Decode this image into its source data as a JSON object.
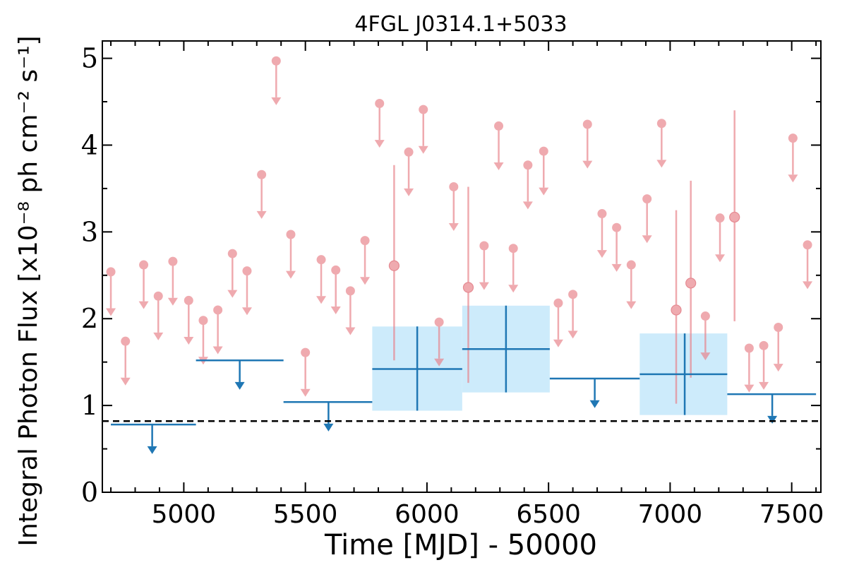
{
  "chart_data": {
    "type": "scatter",
    "title": "4FGL J0314.1+5033",
    "xlabel": "Time [MJD] - 50000",
    "ylabel": "Integral Photon Flux [x10⁻⁸ ph cm⁻² s⁻¹]",
    "xlim": [
      4665,
      7620
    ],
    "ylim": [
      0,
      5.2
    ],
    "xticks": [
      5000,
      5500,
      6000,
      6500,
      7000,
      7500
    ],
    "yticks": [
      0,
      1,
      2,
      3,
      4,
      5
    ],
    "grid": false,
    "reference_line": {
      "y": 0.82,
      "style": "dashed",
      "color": "#000000"
    },
    "colors": {
      "long_bins": "#1f77b4",
      "long_bins_error_box": "#cdebfb",
      "short_bins": "#e8828a"
    },
    "series": [
      {
        "role": "long-bin upper limits",
        "points": [
          {
            "x": 4870,
            "x_lo": 4700,
            "x_hi": 5050,
            "y": 0.78
          },
          {
            "x": 5230,
            "x_lo": 5050,
            "x_hi": 5410,
            "y": 1.52
          },
          {
            "x": 5595,
            "x_lo": 5410,
            "x_hi": 5775,
            "y": 1.04
          },
          {
            "x": 6690,
            "x_lo": 6505,
            "x_hi": 6875,
            "y": 1.31
          },
          {
            "x": 7420,
            "x_lo": 7235,
            "x_hi": 7600,
            "y": 1.13
          }
        ]
      },
      {
        "role": "long-bin detections",
        "points": [
          {
            "x": 5960,
            "x_lo": 5775,
            "x_hi": 6145,
            "y": 1.42,
            "y_lo": 0.94,
            "y_hi": 1.91
          },
          {
            "x": 6325,
            "x_lo": 6145,
            "x_hi": 6505,
            "y": 1.65,
            "y_lo": 1.15,
            "y_hi": 2.15
          },
          {
            "x": 7060,
            "x_lo": 6875,
            "x_hi": 7235,
            "y": 1.36,
            "y_lo": 0.89,
            "y_hi": 1.83
          }
        ]
      },
      {
        "role": "short-bin upper limits",
        "points": [
          {
            "x": 4700,
            "y": 2.54
          },
          {
            "x": 4760,
            "y": 1.74
          },
          {
            "x": 4835,
            "y": 2.62
          },
          {
            "x": 4895,
            "y": 2.26
          },
          {
            "x": 4955,
            "y": 2.66
          },
          {
            "x": 5020,
            "y": 2.21
          },
          {
            "x": 5080,
            "y": 1.98
          },
          {
            "x": 5140,
            "y": 2.1
          },
          {
            "x": 5200,
            "y": 2.75
          },
          {
            "x": 5260,
            "y": 2.55
          },
          {
            "x": 5320,
            "y": 3.66
          },
          {
            "x": 5380,
            "y": 4.97
          },
          {
            "x": 5440,
            "y": 2.97
          },
          {
            "x": 5500,
            "y": 1.61
          },
          {
            "x": 5565,
            "y": 2.68
          },
          {
            "x": 5625,
            "y": 2.56
          },
          {
            "x": 5685,
            "y": 2.32
          },
          {
            "x": 5745,
            "y": 2.9
          },
          {
            "x": 5805,
            "y": 4.48
          },
          {
            "x": 5925,
            "y": 3.92
          },
          {
            "x": 5985,
            "y": 4.41
          },
          {
            "x": 6050,
            "y": 1.96
          },
          {
            "x": 6110,
            "y": 3.52
          },
          {
            "x": 6235,
            "y": 2.84
          },
          {
            "x": 6295,
            "y": 4.22
          },
          {
            "x": 6355,
            "y": 2.81
          },
          {
            "x": 6415,
            "y": 3.77
          },
          {
            "x": 6480,
            "y": 3.93
          },
          {
            "x": 6540,
            "y": 2.18
          },
          {
            "x": 6600,
            "y": 2.28
          },
          {
            "x": 6660,
            "y": 4.24
          },
          {
            "x": 6720,
            "y": 3.21
          },
          {
            "x": 6780,
            "y": 3.05
          },
          {
            "x": 6840,
            "y": 2.62
          },
          {
            "x": 6905,
            "y": 3.38
          },
          {
            "x": 6965,
            "y": 4.25
          },
          {
            "x": 7145,
            "y": 2.03
          },
          {
            "x": 7205,
            "y": 3.16
          },
          {
            "x": 7325,
            "y": 1.66
          },
          {
            "x": 7385,
            "y": 1.69
          },
          {
            "x": 7445,
            "y": 1.9
          },
          {
            "x": 7505,
            "y": 4.08
          },
          {
            "x": 7565,
            "y": 2.85
          }
        ]
      },
      {
        "role": "short-bin detections",
        "points": [
          {
            "x": 5865,
            "y": 2.61,
            "y_lo": 1.52,
            "y_hi": 3.77
          },
          {
            "x": 6170,
            "y": 2.36,
            "y_lo": 1.26,
            "y_hi": 3.52
          },
          {
            "x": 7025,
            "y": 2.1,
            "y_lo": 1.02,
            "y_hi": 3.25
          },
          {
            "x": 7085,
            "y": 2.41,
            "y_lo": 1.32,
            "y_hi": 3.59
          },
          {
            "x": 7265,
            "y": 3.17,
            "y_lo": 1.97,
            "y_hi": 4.4
          }
        ]
      }
    ]
  }
}
